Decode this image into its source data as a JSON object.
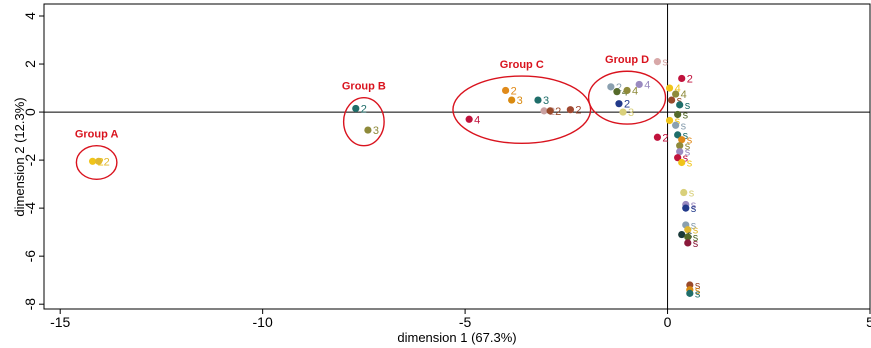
{
  "chart_data": {
    "type": "scatter",
    "xlabel": "dimension 1 (67.3%)",
    "ylabel": "dimension 2 (12.3%)",
    "xlim": [
      -15.4,
      5
    ],
    "ylim": [
      -8.2,
      4.5
    ],
    "xticks": [
      -15,
      -10,
      -5,
      0,
      5
    ],
    "yticks": [
      4,
      2,
      0,
      -2,
      -4,
      -6,
      -8
    ],
    "grid": false,
    "reference_lines": {
      "x": 0,
      "y": 0
    },
    "groups": [
      {
        "label": "Group A",
        "cx": -14.1,
        "cy": -2.1,
        "rx": 0.5,
        "ry": 0.7
      },
      {
        "label": "Group B",
        "cx": -7.5,
        "cy": -0.4,
        "rx": 0.5,
        "ry": 1.0
      },
      {
        "label": "Group C",
        "cx": -3.6,
        "cy": 0.1,
        "rx": 1.7,
        "ry": 1.4
      },
      {
        "label": "Group D",
        "cx": -1.0,
        "cy": 0.6,
        "rx": 0.95,
        "ry": 1.1
      }
    ],
    "points": [
      {
        "x": -14.2,
        "y": -2.05,
        "label": "2",
        "color": "#f0c419"
      },
      {
        "x": -14.05,
        "y": -2.05,
        "label": "2",
        "color": "#e0b830"
      },
      {
        "x": -7.7,
        "y": 0.15,
        "label": "2",
        "color": "#1f6e6a"
      },
      {
        "x": -7.4,
        "y": -0.75,
        "label": "3",
        "color": "#8e8a3a"
      },
      {
        "x": -4.9,
        "y": -0.3,
        "label": "4",
        "color": "#c0123c"
      },
      {
        "x": -4.0,
        "y": 0.9,
        "label": "2",
        "color": "#e08a1a"
      },
      {
        "x": -3.85,
        "y": 0.5,
        "label": "3",
        "color": "#d98a10"
      },
      {
        "x": -3.2,
        "y": 0.5,
        "label": "3",
        "color": "#1f6e6a"
      },
      {
        "x": -3.05,
        "y": 0.05,
        "label": "2",
        "color": "#c9a0a0"
      },
      {
        "x": -2.9,
        "y": 0.05,
        "label": "2",
        "color": "#9a4a2a"
      },
      {
        "x": -2.4,
        "y": 0.1,
        "label": "2",
        "color": "#a04830"
      },
      {
        "x": -1.4,
        "y": 1.05,
        "label": "2",
        "color": "#8aa0b0"
      },
      {
        "x": -1.25,
        "y": 0.85,
        "label": "4",
        "color": "#556a2a"
      },
      {
        "x": -1.0,
        "y": 0.9,
        "label": "4",
        "color": "#8e8a3a"
      },
      {
        "x": -0.7,
        "y": 1.15,
        "label": "4",
        "color": "#9a8ac0"
      },
      {
        "x": -1.2,
        "y": 0.35,
        "label": "2",
        "color": "#223a8a"
      },
      {
        "x": -1.1,
        "y": 0.0,
        "label": "3",
        "color": "#d9d07a"
      },
      {
        "x": -0.25,
        "y": 2.1,
        "label": "s",
        "color": "#d8a8a8"
      },
      {
        "x": 0.35,
        "y": 1.4,
        "label": "2",
        "color": "#c0123c"
      },
      {
        "x": -0.25,
        "y": -1.05,
        "label": "2",
        "color": "#c0123c"
      },
      {
        "x": 0.05,
        "y": 1.0,
        "label": "4",
        "color": "#f0c419"
      },
      {
        "x": 0.2,
        "y": 0.75,
        "label": "4",
        "color": "#8e8a3a"
      },
      {
        "x": 0.1,
        "y": 0.5,
        "label": "s",
        "color": "#9a4a2a"
      },
      {
        "x": 0.3,
        "y": 0.3,
        "label": "s",
        "color": "#1f6e6a"
      },
      {
        "x": 0.25,
        "y": -0.1,
        "label": "s",
        "color": "#556a2a"
      },
      {
        "x": 0.05,
        "y": -0.35,
        "label": "s",
        "color": "#f0c419"
      },
      {
        "x": 0.2,
        "y": -0.55,
        "label": "s",
        "color": "#8aa0b0"
      },
      {
        "x": 0.25,
        "y": -0.95,
        "label": "s",
        "color": "#1f6e6a"
      },
      {
        "x": 0.35,
        "y": -1.15,
        "label": "s",
        "color": "#e08a1a"
      },
      {
        "x": 0.3,
        "y": -1.4,
        "label": "s",
        "color": "#8e8a3a"
      },
      {
        "x": 0.3,
        "y": -1.65,
        "label": "s",
        "color": "#9a8ac0"
      },
      {
        "x": 0.25,
        "y": -1.9,
        "label": "s",
        "color": "#c0123c"
      },
      {
        "x": 0.35,
        "y": -2.1,
        "label": "s",
        "color": "#f0c419"
      },
      {
        "x": 0.4,
        "y": -3.35,
        "label": "s",
        "color": "#d9d07a"
      },
      {
        "x": 0.45,
        "y": -3.85,
        "label": "s",
        "color": "#9a8ac0"
      },
      {
        "x": 0.45,
        "y": -4.0,
        "label": "s",
        "color": "#223a8a"
      },
      {
        "x": 0.45,
        "y": -4.7,
        "label": "s",
        "color": "#8aa0b0"
      },
      {
        "x": 0.5,
        "y": -4.9,
        "label": "s",
        "color": "#e0b830"
      },
      {
        "x": 0.35,
        "y": -5.1,
        "label": "s",
        "color": "#1a3a3a"
      },
      {
        "x": 0.5,
        "y": -5.2,
        "label": "s",
        "color": "#556a2a"
      },
      {
        "x": 0.5,
        "y": -5.45,
        "label": "s",
        "color": "#8a1a3a"
      },
      {
        "x": 0.55,
        "y": -7.2,
        "label": "s",
        "color": "#9a4a2a"
      },
      {
        "x": 0.55,
        "y": -7.4,
        "label": "s",
        "color": "#d98a10"
      },
      {
        "x": 0.55,
        "y": -7.55,
        "label": "s",
        "color": "#1f6e6a"
      }
    ]
  }
}
